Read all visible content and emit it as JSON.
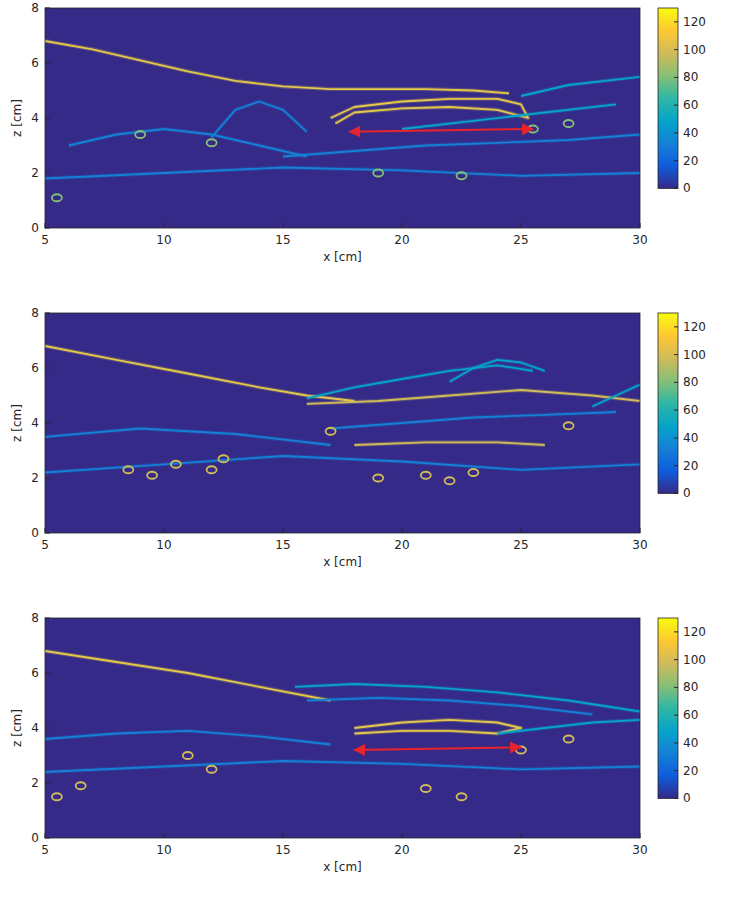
{
  "chart_data": [
    {
      "type": "image",
      "x_label": "x [cm]",
      "y_label": "z [cm]",
      "xlim": [
        5,
        30
      ],
      "ylim": [
        0,
        8
      ],
      "xticks": [
        5,
        10,
        15,
        20,
        25,
        30
      ],
      "yticks": [
        0,
        2,
        4,
        6,
        8
      ],
      "colorbar": {
        "range": [
          0,
          130
        ],
        "ticks": [
          0,
          20,
          40,
          60,
          80,
          100,
          120
        ]
      },
      "series": [
        {
          "type": "line",
          "color": "#e3c84a",
          "x": [
            5,
            7,
            9,
            11,
            13,
            15,
            17,
            19,
            21,
            23,
            24.5
          ],
          "values": [
            6.8,
            6.5,
            6.1,
            5.7,
            5.35,
            5.15,
            5.05,
            5.05,
            5.05,
            5.0,
            4.9
          ]
        },
        {
          "type": "line",
          "color": "#e3c84a",
          "x": [
            17,
            18,
            20,
            22,
            24,
            25,
            25.3,
            24,
            22,
            20,
            18,
            17.2
          ],
          "values": [
            4.0,
            4.4,
            4.6,
            4.7,
            4.7,
            4.5,
            4.0,
            4.3,
            4.4,
            4.35,
            4.2,
            3.8
          ]
        },
        {
          "type": "line",
          "color": "#1481d6",
          "x": [
            6,
            8,
            10,
            12,
            14,
            16
          ],
          "values": [
            3.0,
            3.4,
            3.6,
            3.4,
            3.0,
            2.6
          ]
        },
        {
          "type": "line",
          "color": "#1481d6",
          "x": [
            12,
            13,
            14,
            15,
            16
          ],
          "values": [
            3.3,
            4.3,
            4.6,
            4.3,
            3.5
          ]
        },
        {
          "type": "line",
          "color": "#1481d6",
          "x": [
            15,
            18,
            21,
            24,
            27,
            30
          ],
          "values": [
            2.6,
            2.8,
            3.0,
            3.1,
            3.2,
            3.4
          ]
        },
        {
          "type": "line",
          "color": "#06a4ca",
          "x": [
            20,
            23,
            26,
            29
          ],
          "values": [
            3.6,
            3.9,
            4.2,
            4.5
          ]
        },
        {
          "type": "line",
          "color": "#1481d6",
          "x": [
            5,
            10,
            15,
            20,
            25,
            30
          ],
          "values": [
            1.8,
            2.0,
            2.2,
            2.1,
            1.9,
            2.0
          ]
        },
        {
          "type": "line",
          "color": "#06a4ca",
          "x": [
            25,
            27,
            30
          ],
          "values": [
            4.8,
            5.2,
            5.5
          ]
        },
        {
          "type": "scatter",
          "marker": "ring",
          "color": "#87bf77",
          "x": [
            5.5,
            9,
            12,
            19,
            22.5,
            25.5,
            27
          ],
          "values": [
            1.1,
            3.4,
            3.1,
            2.0,
            1.9,
            3.6,
            3.8
          ]
        },
        {
          "type": "arrow",
          "color": "#e8232a",
          "x": [
            17.8,
            25.5
          ],
          "values": [
            3.5,
            3.6
          ]
        }
      ]
    },
    {
      "type": "image",
      "x_label": "x [cm]",
      "y_label": "z [cm]",
      "xlim": [
        5,
        30
      ],
      "ylim": [
        0,
        8
      ],
      "xticks": [
        5,
        10,
        15,
        20,
        25,
        30
      ],
      "yticks": [
        0,
        2,
        4,
        6,
        8
      ],
      "colorbar": {
        "range": [
          0,
          130
        ],
        "ticks": [
          0,
          20,
          40,
          60,
          80,
          100,
          120
        ]
      },
      "series": [
        {
          "type": "line",
          "color": "#e3c84a",
          "x": [
            5,
            8,
            11,
            14,
            16,
            18
          ],
          "values": [
            6.8,
            6.3,
            5.8,
            5.3,
            5.0,
            4.8
          ]
        },
        {
          "type": "line",
          "color": "#06a4ca",
          "x": [
            16,
            18,
            20,
            22,
            24,
            25.5
          ],
          "values": [
            4.9,
            5.3,
            5.6,
            5.9,
            6.1,
            5.9
          ]
        },
        {
          "type": "line",
          "color": "#06a4ca",
          "x": [
            22,
            23,
            24,
            25,
            26
          ],
          "values": [
            5.5,
            6.0,
            6.3,
            6.2,
            5.9
          ]
        },
        {
          "type": "line",
          "color": "#d1bb59",
          "x": [
            16,
            19,
            22,
            25,
            28,
            30
          ],
          "values": [
            4.7,
            4.8,
            5.0,
            5.2,
            5.0,
            4.8
          ]
        },
        {
          "type": "line",
          "color": "#1481d6",
          "x": [
            17,
            20,
            23,
            26,
            29
          ],
          "values": [
            3.8,
            4.0,
            4.2,
            4.3,
            4.4
          ]
        },
        {
          "type": "line",
          "color": "#d1bb59",
          "x": [
            18,
            21,
            24,
            26
          ],
          "values": [
            3.2,
            3.3,
            3.3,
            3.2
          ]
        },
        {
          "type": "line",
          "color": "#1481d6",
          "x": [
            5,
            9,
            13,
            17
          ],
          "values": [
            3.5,
            3.8,
            3.6,
            3.2
          ]
        },
        {
          "type": "line",
          "color": "#1481d6",
          "x": [
            5,
            10,
            15,
            20,
            25,
            30
          ],
          "values": [
            2.2,
            2.5,
            2.8,
            2.6,
            2.3,
            2.5
          ]
        },
        {
          "type": "line",
          "color": "#06a4ca",
          "x": [
            28,
            29,
            30
          ],
          "values": [
            4.6,
            5.0,
            5.4
          ]
        },
        {
          "type": "scatter",
          "marker": "ring",
          "color": "#d1bb59",
          "x": [
            8.5,
            9.5,
            10.5,
            12,
            12.5,
            17,
            19,
            21,
            22,
            23,
            27
          ],
          "values": [
            2.3,
            2.1,
            2.5,
            2.3,
            2.7,
            3.7,
            2.0,
            2.1,
            1.9,
            2.2,
            3.9
          ]
        }
      ]
    },
    {
      "type": "image",
      "x_label": "x [cm]",
      "y_label": "z [cm]",
      "xlim": [
        5,
        30
      ],
      "ylim": [
        0,
        8
      ],
      "xticks": [
        5,
        10,
        15,
        20,
        25,
        30
      ],
      "yticks": [
        0,
        2,
        4,
        6,
        8
      ],
      "colorbar": {
        "range": [
          0,
          130
        ],
        "ticks": [
          0,
          20,
          40,
          60,
          80,
          100,
          120
        ]
      },
      "series": [
        {
          "type": "line",
          "color": "#e3c84a",
          "x": [
            5,
            8,
            11,
            14,
            17
          ],
          "values": [
            6.8,
            6.4,
            6.0,
            5.5,
            5.0
          ]
        },
        {
          "type": "line",
          "color": "#06a4ca",
          "x": [
            15.5,
            18,
            21,
            24,
            27,
            30
          ],
          "values": [
            5.5,
            5.6,
            5.5,
            5.3,
            5.0,
            4.6
          ]
        },
        {
          "type": "line",
          "color": "#1481d6",
          "x": [
            16,
            19,
            22,
            25,
            28
          ],
          "values": [
            5.0,
            5.1,
            5.0,
            4.8,
            4.5
          ]
        },
        {
          "type": "line",
          "color": "#e3c84a",
          "x": [
            18,
            20,
            22,
            24,
            25,
            24,
            22,
            20,
            18
          ],
          "values": [
            4.0,
            4.2,
            4.3,
            4.2,
            4.0,
            3.8,
            3.9,
            3.9,
            3.8
          ]
        },
        {
          "type": "line",
          "color": "#1481d6",
          "x": [
            5,
            8,
            11,
            14,
            17
          ],
          "values": [
            3.6,
            3.8,
            3.9,
            3.7,
            3.4
          ]
        },
        {
          "type": "line",
          "color": "#1481d6",
          "x": [
            5,
            10,
            15,
            20,
            25,
            30
          ],
          "values": [
            2.4,
            2.6,
            2.8,
            2.7,
            2.5,
            2.6
          ]
        },
        {
          "type": "line",
          "color": "#06a4ca",
          "x": [
            24,
            26,
            28,
            30
          ],
          "values": [
            3.8,
            4.0,
            4.2,
            4.3
          ]
        },
        {
          "type": "scatter",
          "marker": "ring",
          "color": "#d1bb59",
          "x": [
            5.5,
            6.5,
            11,
            12,
            21,
            22.5,
            25,
            27
          ],
          "values": [
            1.5,
            1.9,
            3.0,
            2.5,
            1.8,
            1.5,
            3.2,
            3.6
          ]
        },
        {
          "type": "arrow",
          "color": "#e8232a",
          "x": [
            18,
            25
          ],
          "values": [
            3.2,
            3.3
          ]
        }
      ]
    }
  ]
}
